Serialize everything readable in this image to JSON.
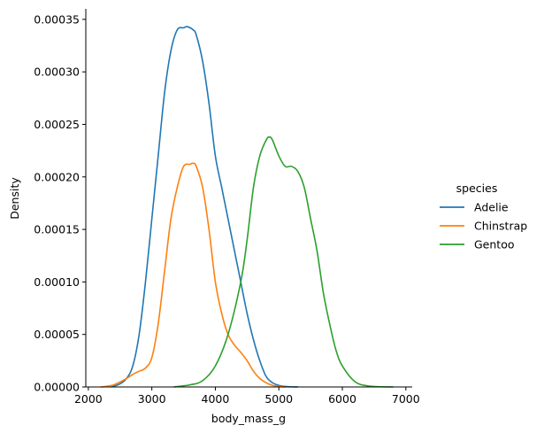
{
  "chart_data": {
    "type": "line",
    "title": "",
    "xlabel": "body_mass_g",
    "ylabel": "Density",
    "xlim": [
      1960,
      7100
    ],
    "ylim": [
      0,
      0.00036
    ],
    "xticks": [
      2000,
      3000,
      4000,
      5000,
      6000,
      7000
    ],
    "xtick_labels": [
      "2000",
      "3000",
      "4000",
      "5000",
      "6000",
      "7000"
    ],
    "yticks": [
      0,
      5e-05,
      0.0001,
      0.00015,
      0.0002,
      0.00025,
      0.0003,
      0.00035
    ],
    "ytick_labels": [
      "0.00000",
      "0.00005",
      "0.00010",
      "0.00015",
      "0.00020",
      "0.00025",
      "0.00030",
      "0.00035"
    ],
    "grid": false,
    "legend": {
      "title": "species",
      "placement": "right"
    },
    "series": [
      {
        "name": "Adelie",
        "color": "#1f77b4",
        "x": [
          2370,
          2500,
          2600,
          2700,
          2800,
          2900,
          3000,
          3100,
          3200,
          3300,
          3400,
          3500,
          3560,
          3650,
          3700,
          3800,
          3900,
          4000,
          4100,
          4200,
          4300,
          4400,
          4500,
          4600,
          4700,
          4800,
          4900,
          5000,
          5100,
          5200,
          5300
        ],
        "y": [
          0.0,
          3e-06,
          8e-06,
          2e-05,
          5e-05,
          0.0001,
          0.00016,
          0.00022,
          0.00028,
          0.00032,
          0.00034,
          0.000342,
          0.000343,
          0.00034,
          0.000335,
          0.00031,
          0.00027,
          0.00022,
          0.00019,
          0.00016,
          0.00013,
          0.0001,
          7e-05,
          4.5e-05,
          2.5e-05,
          1e-05,
          4e-06,
          1.5e-06,
          5e-07,
          1e-07,
          0.0
        ]
      },
      {
        "name": "Chinstrap",
        "color": "#ff7f0e",
        "x": [
          2200,
          2400,
          2600,
          2700,
          2800,
          2900,
          3000,
          3100,
          3200,
          3300,
          3400,
          3500,
          3600,
          3650,
          3700,
          3800,
          3900,
          4000,
          4100,
          4200,
          4300,
          4400,
          4500,
          4600,
          4700,
          4800,
          4900,
          5000,
          5100
        ],
        "y": [
          0.0,
          2e-06,
          8e-06,
          1.2e-05,
          1.5e-05,
          1.8e-05,
          2.8e-05,
          6e-05,
          0.00011,
          0.00016,
          0.00019,
          0.00021,
          0.000212,
          0.000213,
          0.00021,
          0.00019,
          0.00015,
          0.0001,
          7e-05,
          5e-05,
          4e-05,
          3.3e-05,
          2.5e-05,
          1.5e-05,
          8e-06,
          4e-06,
          1.5e-06,
          5e-07,
          0.0
        ]
      },
      {
        "name": "Gentoo",
        "color": "#2ca02c",
        "x": [
          3350,
          3600,
          3800,
          4000,
          4200,
          4400,
          4500,
          4600,
          4700,
          4800,
          4850,
          4900,
          5000,
          5100,
          5200,
          5300,
          5400,
          5500,
          5600,
          5700,
          5800,
          5900,
          6000,
          6200,
          6400,
          6600,
          6800
        ],
        "y": [
          0.0,
          2e-06,
          6e-06,
          2e-05,
          5e-05,
          0.0001,
          0.00014,
          0.00019,
          0.00022,
          0.000235,
          0.000238,
          0.000235,
          0.00022,
          0.00021,
          0.00021,
          0.000205,
          0.00019,
          0.00016,
          0.00013,
          9e-05,
          6e-05,
          3.5e-05,
          2e-05,
          5e-06,
          1e-06,
          2e-07,
          0.0
        ]
      }
    ]
  }
}
